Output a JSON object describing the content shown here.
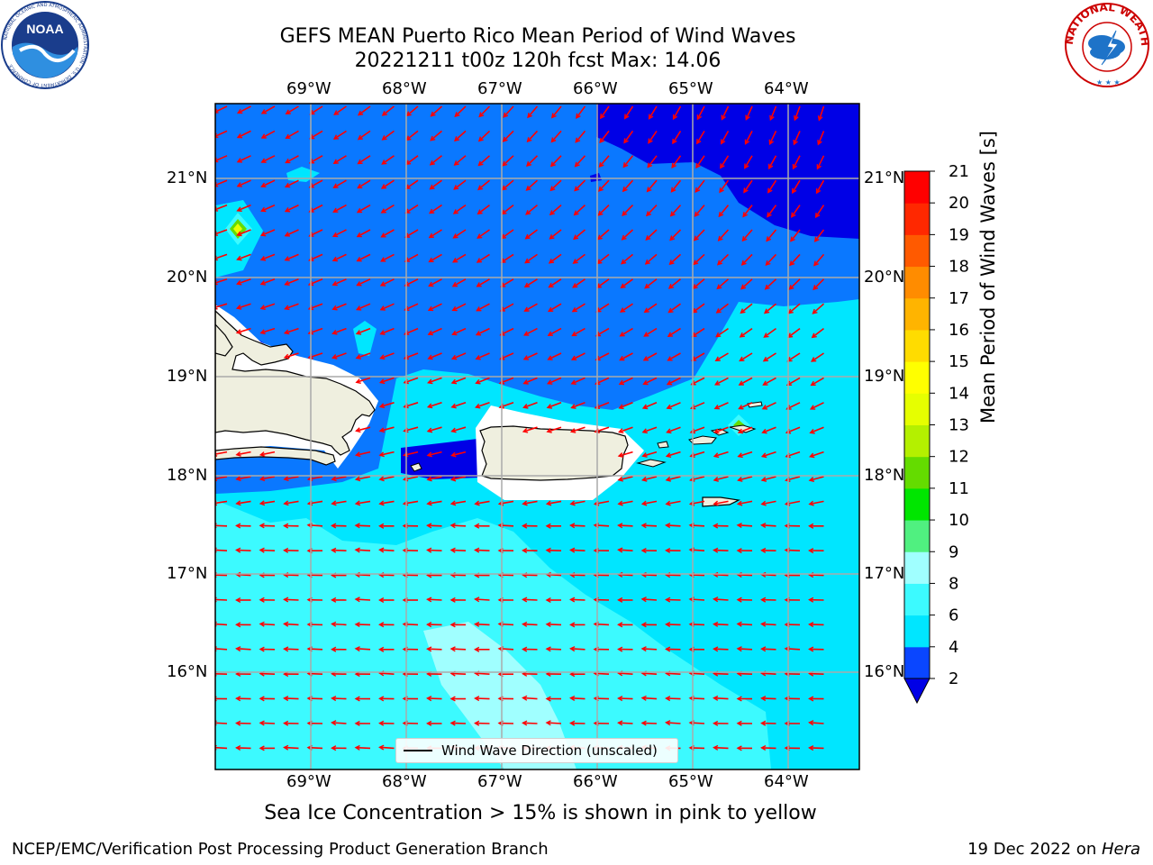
{
  "title": {
    "line1": "GEFS MEAN Puerto Rico Mean Period of Wind Waves",
    "line2": "20221211 t00z 120h fcst   Max: 14.06"
  },
  "map": {
    "lon_labels": [
      "69°W",
      "68°W",
      "67°W",
      "66°W",
      "65°W",
      "64°W"
    ],
    "lat_labels": [
      "21°N",
      "20°N",
      "19°N",
      "18°N",
      "17°N",
      "16°N"
    ],
    "extent": {
      "west": "70°W",
      "east": "63.3°W",
      "south": "15°N",
      "north": "21.8°N"
    },
    "land_regions": [
      "Hispaniola",
      "Puerto Rico",
      "Virgin Islands"
    ],
    "arrow_color": "#ff0000",
    "legend_label": "Wind Wave Direction (unscaled)"
  },
  "colorbar": {
    "label": "Mean Period of Wind Waves [s]",
    "ticks": [
      "2",
      "4",
      "6",
      "8",
      "9",
      "10",
      "11",
      "12",
      "13",
      "14",
      "15",
      "16",
      "17",
      "18",
      "19",
      "20",
      "21"
    ],
    "colors": [
      "#0a46ff",
      "#00e6ff",
      "#3cfaff",
      "#a0ffff",
      "#50f080",
      "#00e600",
      "#64dc00",
      "#b4f000",
      "#e6ff00",
      "#ffff00",
      "#ffdc00",
      "#ffb400",
      "#ff8c00",
      "#ff5a00",
      "#ff2800",
      "#ff0000"
    ],
    "extend_color": "#0000e6"
  },
  "subtitle": "Sea Ice Concentration > 15% is shown in pink to yellow",
  "footer": {
    "left": "NCEP/EMC/Verification Post Processing Product Generation Branch",
    "right_prefix": "19 Dec 2022 on ",
    "right_host": "Hera"
  },
  "logos": {
    "noaa_text": "NOAA",
    "noaa_ring": "NATIONAL OCEANIC AND ATMOSPHERIC ADMINISTRATION · U.S. DEPARTMENT OF COMMERCE",
    "nws_text": "NATIONAL WEATHER SERVICE"
  }
}
